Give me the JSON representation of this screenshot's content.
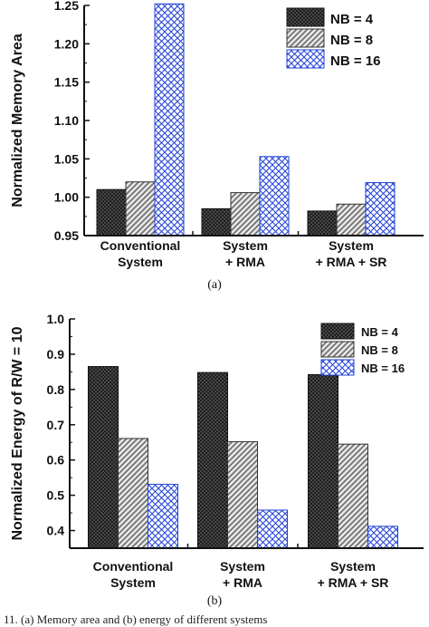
{
  "chart_data": [
    {
      "type": "bar",
      "panel_label": "(a)",
      "ylabel": "Normalized Memory Area",
      "ylim": [
        0.95,
        1.25
      ],
      "yticks": [
        "0.95",
        "1.00",
        "1.05",
        "1.10",
        "1.15",
        "1.20",
        "1.25"
      ],
      "categories": [
        [
          "Conventional",
          "System"
        ],
        [
          "System",
          "+ RMA"
        ],
        [
          "System",
          "+ RMA + SR"
        ]
      ],
      "series": [
        {
          "name": "NB = 4",
          "values": [
            1.01,
            0.985,
            0.982
          ]
        },
        {
          "name": "NB = 8",
          "values": [
            1.02,
            1.006,
            0.991
          ]
        },
        {
          "name": "NB = 16",
          "values": [
            1.252,
            1.053,
            1.019
          ]
        }
      ],
      "legend_position": "top-right"
    },
    {
      "type": "bar",
      "panel_label": "(b)",
      "ylabel": "Normalized Energy of R/W = 10",
      "ylim": [
        0.35,
        1.0
      ],
      "yticks": [
        "0.4",
        "0.5",
        "0.6",
        "0.7",
        "0.8",
        "0.9",
        "1.0"
      ],
      "categories": [
        [
          "Conventional",
          "System"
        ],
        [
          "System",
          "+ RMA"
        ],
        [
          "System",
          "+ RMA + SR"
        ]
      ],
      "series": [
        {
          "name": "NB = 4",
          "values": [
            0.865,
            0.848,
            0.842
          ]
        },
        {
          "name": "NB = 8",
          "values": [
            0.661,
            0.652,
            0.645
          ]
        },
        {
          "name": "NB = 16",
          "values": [
            0.531,
            0.458,
            0.412
          ]
        }
      ],
      "legend_position": "top-right"
    }
  ],
  "colors": {
    "nb4_fill": "#3a3a3a",
    "nb8_fill": "#bcbcbc",
    "nb16_stroke": "#1f3fd6",
    "axis": "#111111"
  },
  "caption_fragment": "11. (a) Memory area and (b) energy of different systems"
}
